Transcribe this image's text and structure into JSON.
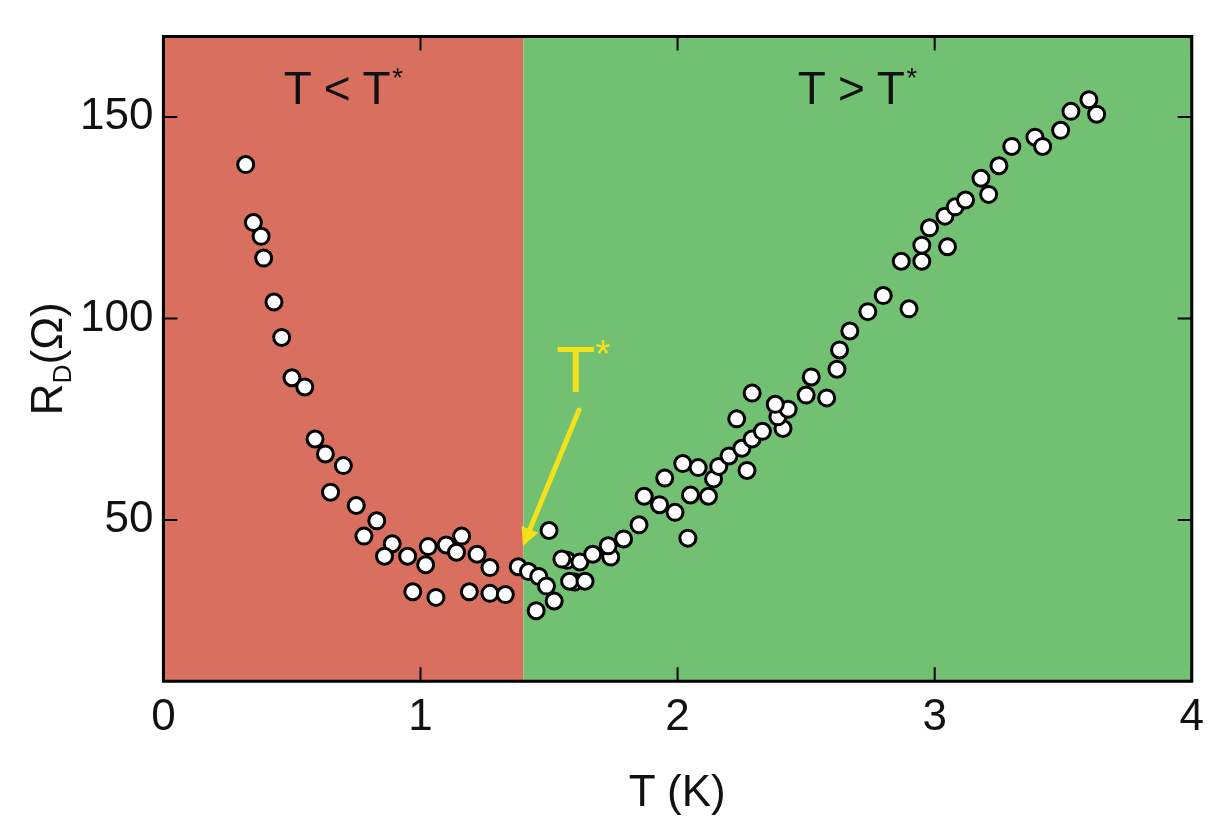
{
  "chart_data": {
    "type": "scatter",
    "xlabel": "T (K)",
    "ylabel": "R$_{D}$(Ω)",
    "xlim": [
      0,
      4
    ],
    "xticks": [
      0,
      1,
      2,
      3,
      4
    ],
    "ylim": [
      10,
      170
    ],
    "yticks": [
      50,
      100,
      150
    ],
    "grid": false,
    "legend": false,
    "marker": "circle",
    "bands": [
      {
        "axis": "x",
        "from": 0,
        "to": 1.4,
        "label": "T < T$^{*}$",
        "color": "#d9705f"
      },
      {
        "axis": "x",
        "from": 1.4,
        "to": 4,
        "label": "T > T$^{*}$",
        "color": "#72c072"
      }
    ],
    "annotations": [
      {
        "text": "T$^{*}$",
        "x": 1.4,
        "y": 43.6
      }
    ],
    "series": [
      {
        "color": "#ffffff",
        "x": [
          0.32,
          0.35,
          0.38,
          0.39,
          0.43,
          0.46,
          0.5,
          0.55,
          0.59,
          0.63,
          0.7,
          0.65,
          0.75,
          0.83,
          0.78,
          0.89,
          0.86,
          0.95,
          1.02,
          1.03,
          1.1,
          1.16,
          1.14,
          1.22,
          1.27,
          0.97,
          1.06,
          1.19,
          1.27,
          1.33,
          1.38,
          1.42,
          1.46,
          1.49,
          1.52,
          1.45,
          1.5,
          1.57,
          1.62,
          1.6,
          1.55,
          1.58,
          1.64,
          1.67,
          1.74,
          1.73,
          1.79,
          1.85,
          1.87,
          1.93,
          1.99,
          2.04,
          1.95,
          2.02,
          2.08,
          2.05,
          2.12,
          2.14,
          2.16,
          2.2,
          2.25,
          2.27,
          2.23,
          2.29,
          2.33,
          2.41,
          2.39,
          2.29,
          2.43,
          2.38,
          2.5,
          2.58,
          2.52,
          2.62,
          2.63,
          2.67,
          2.74,
          2.8,
          2.9,
          2.87,
          2.95,
          2.95,
          3.05,
          2.98,
          3.04,
          3.08,
          3.12,
          3.21,
          3.18,
          3.25,
          3.3,
          3.39,
          3.42,
          3.49,
          3.53,
          3.6,
          3.63
        ],
        "values": [
          138.2,
          123.8,
          120.4,
          115.0,
          104.1,
          95.3,
          85.3,
          83.0,
          70.1,
          66.4,
          63.5,
          56.9,
          53.6,
          49.8,
          46.0,
          44.1,
          41.0,
          41.0,
          38.9,
          43.4,
          43.8,
          46.0,
          42.0,
          41.5,
          38.2,
          32.2,
          30.8,
          32.2,
          31.8,
          31.5,
          38.4,
          37.2,
          36.0,
          33.6,
          29.9,
          27.5,
          47.4,
          40.0,
          39.6,
          34.6,
          40.3,
          34.8,
          34.8,
          41.5,
          40.8,
          43.6,
          45.3,
          48.8,
          55.9,
          53.8,
          51.9,
          45.5,
          60.4,
          64.0,
          63.0,
          56.2,
          55.9,
          60.2,
          63.3,
          65.9,
          67.8,
          62.3,
          75.1,
          70.1,
          72.0,
          72.7,
          75.6,
          81.5,
          77.5,
          78.7,
          81.0,
          80.3,
          85.5,
          87.4,
          92.2,
          96.9,
          101.7,
          105.7,
          102.4,
          114.2,
          114.2,
          118.2,
          117.8,
          122.5,
          125.4,
          127.7,
          129.4,
          130.8,
          134.8,
          137.9,
          142.7,
          145.0,
          142.7,
          146.7,
          151.4,
          154.3,
          150.7
        ]
      }
    ]
  }
}
